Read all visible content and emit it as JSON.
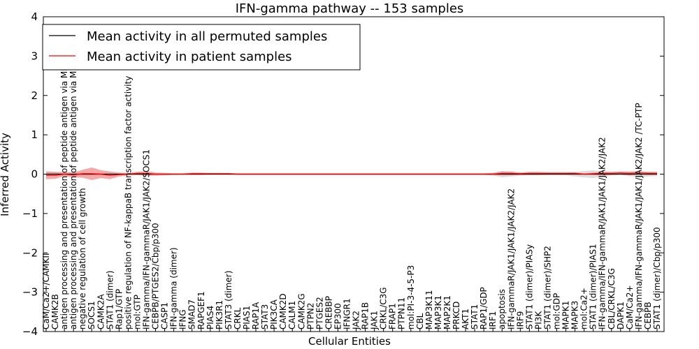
{
  "chart_data": {
    "type": "line",
    "title": "IFN-gamma pathway -- 153 samples",
    "xlabel": "Cellular Entities",
    "ylabel": "Inferred Activity",
    "ylim": [
      -4,
      4
    ],
    "yticks": [
      "−4",
      "−3",
      "−2",
      "−1",
      "0",
      "1",
      "2",
      "3",
      "4"
    ],
    "ytick_values": [
      -4,
      -3,
      -2,
      -1,
      0,
      1,
      2,
      3,
      4
    ],
    "legend_position": "top-left",
    "series": [
      {
        "name": "Mean activity in all permuted samples",
        "color": "#000000",
        "band_color": "#c8c8c8"
      },
      {
        "name": "Mean activity in patient samples",
        "color": "#ff0000",
        "band_color": "#f28c8c"
      }
    ],
    "categories": [
      "CaM/Ca2+/CAMKII",
      "CAMK2B",
      "antigen processing and presentation of peptide antigen via MHC class I",
      "antigen processing and presentation of peptide antigen via MHC class II",
      "negative regulation of cell growth",
      "SOCS1",
      "CAMK2A",
      "STAT1 (dimer)",
      "Rap1/GTP",
      "positive regulation of NF-kappaB transcription factor activity",
      "mol:GTP",
      "IFN-gamma/IFN-gammaR/JAK1/JAK2/SOCS1",
      "CEBPB/PTGES2/Cbp/p300",
      "CASP1",
      "IFN-gamma (dimer)",
      "IFNG",
      "SMAD7",
      "RAPGEF1",
      "PIAS4",
      "PIK3R1",
      "STAT3 (dimer)",
      "CRKL",
      "PIAS1",
      "RAP1A",
      "STAT3",
      "PIK3CA",
      "CAMK2D",
      "CALM1",
      "CAMK2G",
      "PTPN2",
      "PTGES2",
      "CREBBP",
      "EP300",
      "IFNGR1",
      "JAK2",
      "RAP1B",
      "JAK1",
      "CRKL/C3G",
      "FRAP1",
      "PTPN11",
      "mol:PI-3-4-5-P3",
      "CBL",
      "MAP3K11",
      "MAP3K1",
      "MAP2K1",
      "PRKCD",
      "AKT1",
      "STAT1",
      "RAP1/GDP",
      "IRF1",
      "apoptosis",
      "IFN-gammaR/JAK1/JAK1/JAK2/JAK2",
      "IRF9",
      "STAT1 (dimer)/PIASy",
      "PI3K",
      "STAT1 (dimer)/SHP2",
      "mol:GDP",
      "MAPK1",
      "MAPK3",
      "mol:Ca2+",
      "STAT1 (dimer)/PIAS1",
      "IFN-gamma/IFN-gammaR/JAK1/JAK1/JAK2/JAK2",
      "CBL/CRKL/C3G",
      "DAPK1",
      "CaM/Ca2+",
      "IFN-gamma/IFN-gammaR/JAK1/JAK1/JAK2/JAK2 /TC-PTP",
      "CEBPB",
      "STAT1 (dimer)/Cbp/p300"
    ],
    "permuted_mean": [
      0,
      0,
      0,
      0,
      0,
      0,
      0,
      0,
      0,
      0,
      0,
      0,
      0,
      0,
      0,
      0,
      0,
      0,
      0,
      0,
      0,
      0,
      0,
      0,
      0,
      0,
      0,
      0,
      0,
      0,
      0,
      0,
      0,
      0,
      0,
      0,
      0,
      0,
      0,
      0,
      0,
      0,
      0,
      0,
      0,
      0,
      0,
      0,
      0,
      0,
      0,
      0,
      0,
      0,
      0,
      0,
      0,
      0,
      0,
      0,
      0,
      0,
      0,
      0,
      0,
      0,
      0,
      0
    ],
    "permuted_band": [
      0.05,
      0.05,
      0.05,
      0.05,
      0.05,
      0.04,
      0.03,
      0.03,
      0.02,
      0.02,
      0.02,
      0.02,
      0.02,
      0.02,
      0.02,
      0.02,
      0.02,
      0.02,
      0.02,
      0.02,
      0.02,
      0.02,
      0.02,
      0.02,
      0.02,
      0.02,
      0.02,
      0.02,
      0.02,
      0.02,
      0.02,
      0.02,
      0.02,
      0.02,
      0.02,
      0.02,
      0.02,
      0.02,
      0.02,
      0.02,
      0.02,
      0.02,
      0.02,
      0.02,
      0.02,
      0.02,
      0.02,
      0.02,
      0.02,
      0.03,
      0.08,
      0.06,
      0.04,
      0.03,
      0.03,
      0.03,
      0.03,
      0.03,
      0.06,
      0.08,
      0.1,
      0.06,
      0.03,
      0.02,
      0.05,
      0.08,
      0.06,
      0.05
    ],
    "patient_mean": [
      -0.03,
      -0.03,
      0.0,
      -0.02,
      0.01,
      0.01,
      0.0,
      -0.03,
      -0.01,
      0.0,
      0.02,
      0.02,
      0.0,
      0.0,
      0.0,
      0.0,
      0.01,
      0.01,
      0.01,
      0.01,
      0.01,
      0.0,
      0.0,
      0.0,
      0.0,
      0.0,
      0.0,
      0.0,
      0.0,
      0.0,
      0.0,
      0.0,
      0.0,
      0.0,
      0.0,
      0.0,
      0.0,
      0.0,
      0.0,
      0.0,
      0.0,
      0.0,
      0.0,
      0.0,
      0.0,
      0.0,
      0.0,
      0.0,
      0.0,
      0.0,
      0.02,
      0.02,
      0.01,
      0.02,
      0.02,
      0.02,
      0.02,
      0.02,
      0.02,
      0.0,
      0.01,
      0.02,
      0.02,
      0.03,
      0.02,
      0.03,
      0.02,
      0.02
    ],
    "patient_band": [
      0.1,
      0.09,
      0.05,
      0.06,
      0.1,
      0.16,
      0.1,
      0.1,
      0.05,
      0.03,
      0.04,
      0.06,
      0.04,
      0.03,
      0.02,
      0.02,
      0.03,
      0.03,
      0.02,
      0.02,
      0.02,
      0.02,
      0.02,
      0.02,
      0.02,
      0.02,
      0.02,
      0.02,
      0.02,
      0.02,
      0.02,
      0.02,
      0.02,
      0.02,
      0.02,
      0.02,
      0.02,
      0.02,
      0.02,
      0.02,
      0.02,
      0.02,
      0.02,
      0.02,
      0.02,
      0.02,
      0.02,
      0.02,
      0.02,
      0.03,
      0.05,
      0.05,
      0.03,
      0.04,
      0.04,
      0.03,
      0.03,
      0.03,
      0.03,
      0.02,
      0.03,
      0.05,
      0.04,
      0.04,
      0.05,
      0.04,
      0.04,
      0.04
    ]
  }
}
